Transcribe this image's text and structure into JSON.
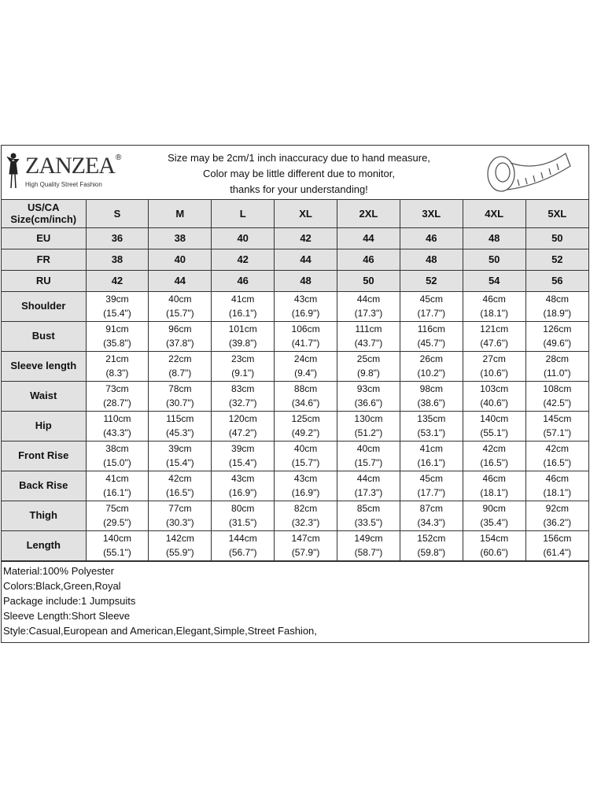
{
  "brand": {
    "name": "ZANZEA",
    "registered": "®",
    "tagline": "High Quality Street Fashion"
  },
  "notice": [
    "Size may be 2cm/1 inch inaccuracy due to hand measure,",
    "Color may be little different due to monitor,",
    "thanks for your understanding!"
  ],
  "size_header": {
    "label_line1": "US/CA",
    "label_line2": "Size(cm/inch)",
    "sizes": [
      "S",
      "M",
      "L",
      "XL",
      "2XL",
      "3XL",
      "4XL",
      "5XL"
    ]
  },
  "equivalents": [
    {
      "label": "EU",
      "values": [
        "36",
        "38",
        "40",
        "42",
        "44",
        "46",
        "48",
        "50"
      ]
    },
    {
      "label": "FR",
      "values": [
        "38",
        "40",
        "42",
        "44",
        "46",
        "48",
        "50",
        "52"
      ]
    },
    {
      "label": "RU",
      "values": [
        "42",
        "44",
        "46",
        "48",
        "50",
        "52",
        "54",
        "56"
      ]
    }
  ],
  "measurements": [
    {
      "label": "Shoulder",
      "cm": [
        "39cm",
        "40cm",
        "41cm",
        "43cm",
        "44cm",
        "45cm",
        "46cm",
        "48cm"
      ],
      "inch": [
        "(15.4\")",
        "(15.7\")",
        "(16.1\")",
        "(16.9\")",
        "(17.3\")",
        "(17.7\")",
        "(18.1\")",
        "(18.9\")"
      ]
    },
    {
      "label": "Bust",
      "cm": [
        "91cm",
        "96cm",
        "101cm",
        "106cm",
        "111cm",
        "116cm",
        "121cm",
        "126cm"
      ],
      "inch": [
        "(35.8\")",
        "(37.8\")",
        "(39.8\")",
        "(41.7\")",
        "(43.7\")",
        "(45.7\")",
        "(47.6\")",
        "(49.6\")"
      ]
    },
    {
      "label": "Sleeve length",
      "cm": [
        "21cm",
        "22cm",
        "23cm",
        "24cm",
        "25cm",
        "26cm",
        "27cm",
        "28cm"
      ],
      "inch": [
        "(8.3\")",
        "(8.7\")",
        "(9.1\")",
        "(9.4\")",
        "(9.8\")",
        "(10.2\")",
        "(10.6\")",
        "(11.0\")"
      ]
    },
    {
      "label": "Waist",
      "cm": [
        "73cm",
        "78cm",
        "83cm",
        "88cm",
        "93cm",
        "98cm",
        "103cm",
        "108cm"
      ],
      "inch": [
        "(28.7\")",
        "(30.7\")",
        "(32.7\")",
        "(34.6\")",
        "(36.6\")",
        "(38.6\")",
        "(40.6\")",
        "(42.5\")"
      ]
    },
    {
      "label": "Hip",
      "cm": [
        "110cm",
        "115cm",
        "120cm",
        "125cm",
        "130cm",
        "135cm",
        "140cm",
        "145cm"
      ],
      "inch": [
        "(43.3\")",
        "(45.3\")",
        "(47.2\")",
        "(49.2\")",
        "(51.2\")",
        "(53.1\")",
        "(55.1\")",
        "(57.1\")"
      ]
    },
    {
      "label": "Front Rise",
      "cm": [
        "38cm",
        "39cm",
        "39cm",
        "40cm",
        "40cm",
        "41cm",
        "42cm",
        "42cm"
      ],
      "inch": [
        "(15.0\")",
        "(15.4\")",
        "(15.4\")",
        "(15.7\")",
        "(15.7\")",
        "(16.1\")",
        "(16.5\")",
        "(16.5\")"
      ]
    },
    {
      "label": "Back Rise",
      "cm": [
        "41cm",
        "42cm",
        "43cm",
        "43cm",
        "44cm",
        "45cm",
        "46cm",
        "46cm"
      ],
      "inch": [
        "(16.1\")",
        "(16.5\")",
        "(16.9\")",
        "(16.9\")",
        "(17.3\")",
        "(17.7\")",
        "(18.1\")",
        "(18.1\")"
      ]
    },
    {
      "label": "Thigh",
      "cm": [
        "75cm",
        "77cm",
        "80cm",
        "82cm",
        "85cm",
        "87cm",
        "90cm",
        "92cm"
      ],
      "inch": [
        "(29.5\")",
        "(30.3\")",
        "(31.5\")",
        "(32.3\")",
        "(33.5\")",
        "(34.3\")",
        "(35.4\")",
        "(36.2\")"
      ]
    },
    {
      "label": "Length",
      "cm": [
        "140cm",
        "142cm",
        "144cm",
        "147cm",
        "149cm",
        "152cm",
        "154cm",
        "156cm"
      ],
      "inch": [
        "(55.1\")",
        "(55.9\")",
        "(56.7\")",
        "(57.9\")",
        "(58.7\")",
        "(59.8\")",
        "(60.6\")",
        "(61.4\")"
      ]
    }
  ],
  "notes": [
    "Material:100% Polyester",
    "Colors:Black,Green,Royal",
    "Package include:1 Jumpsuits",
    "Sleeve Length:Short Sleeve",
    "Style:Casual,European and American,Elegant,Simple,Street Fashion,"
  ]
}
